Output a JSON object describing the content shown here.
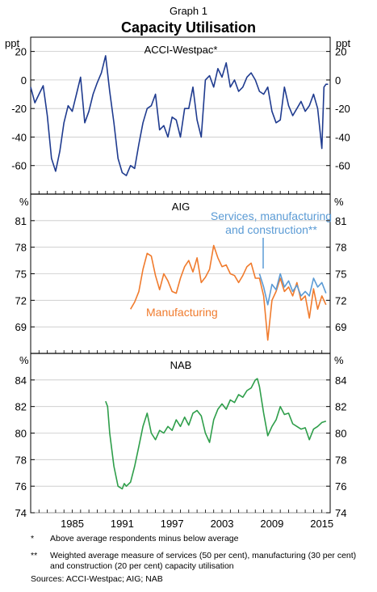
{
  "header": {
    "graph_label": "Graph 1",
    "title": "Capacity Utilisation"
  },
  "colors": {
    "acci": "#1f3b8f",
    "manufacturing": "#f07b2d",
    "services": "#5b9bd5",
    "nab": "#2e9e4a"
  },
  "chart_data": [
    {
      "type": "line",
      "title": "ACCI-Westpac*",
      "ylabel": "ppt",
      "ylim": [
        -80,
        30
      ],
      "yticks": [
        -60,
        -40,
        -20,
        0,
        20
      ],
      "xlim": [
        1980,
        2016
      ],
      "series": [
        {
          "name": "ACCI-Westpac",
          "x": [
            1980,
            1980.5,
            1981,
            1981.5,
            1982,
            1982.5,
            1983,
            1983.5,
            1984,
            1984.5,
            1985,
            1985.5,
            1986,
            1986.5,
            1987,
            1987.5,
            1988,
            1988.5,
            1989,
            1989.5,
            1990,
            1990.5,
            1991,
            1991.5,
            1992,
            1992.5,
            1993,
            1993.5,
            1994,
            1994.5,
            1995,
            1995.5,
            1996,
            1996.5,
            1997,
            1997.5,
            1998,
            1998.5,
            1999,
            1999.5,
            2000,
            2000.5,
            2001,
            2001.5,
            2002,
            2002.5,
            2003,
            2003.5,
            2004,
            2004.5,
            2005,
            2005.5,
            2006,
            2006.5,
            2007,
            2007.5,
            2008,
            2008.5,
            2009,
            2009.5,
            2010,
            2010.5,
            2011,
            2011.5,
            2012,
            2012.5,
            2013,
            2013.5,
            2014,
            2014.5,
            2015,
            2015.25,
            2015.5,
            2015.75
          ],
          "values": [
            -5,
            -16,
            -10,
            -4,
            -25,
            -55,
            -64,
            -50,
            -30,
            -18,
            -22,
            -10,
            2,
            -30,
            -22,
            -10,
            -2,
            5,
            17,
            -8,
            -30,
            -55,
            -65,
            -67,
            -60,
            -62,
            -45,
            -30,
            -20,
            -18,
            -10,
            -35,
            -32,
            -40,
            -26,
            -28,
            -40,
            -20,
            -20,
            -5,
            -28,
            -40,
            0,
            3,
            -5,
            8,
            2,
            12,
            -5,
            0,
            -8,
            -5,
            2,
            5,
            0,
            -8,
            -10,
            -5,
            -22,
            -30,
            -28,
            -5,
            -18,
            -25,
            -20,
            -15,
            -22,
            -18,
            -10,
            -20,
            -48,
            -5,
            -3,
            -3
          ]
        }
      ]
    },
    {
      "type": "line",
      "title": "AIG",
      "ylabel": "%",
      "ylim": [
        66,
        84
      ],
      "yticks": [
        69,
        72,
        75,
        78,
        81
      ],
      "xlim": [
        1980,
        2016
      ],
      "series": [
        {
          "name": "Manufacturing",
          "x": [
            1992,
            1992.5,
            1993,
            1993.5,
            1994,
            1994.5,
            1995,
            1995.5,
            1996,
            1996.5,
            1997,
            1997.5,
            1998,
            1998.5,
            1999,
            1999.5,
            2000,
            2000.5,
            2001,
            2001.5,
            2002,
            2002.5,
            2003,
            2003.5,
            2004,
            2004.5,
            2005,
            2005.5,
            2006,
            2006.5,
            2007,
            2007.5,
            2008,
            2008.5,
            2009,
            2009.5,
            2010,
            2010.5,
            2011,
            2011.5,
            2012,
            2012.5,
            2013,
            2013.5,
            2014,
            2014.5,
            2015,
            2015.5
          ],
          "values": [
            71,
            71.8,
            73,
            75.5,
            77.3,
            77,
            74.8,
            73.2,
            75,
            74.2,
            73,
            72.8,
            74.5,
            75.8,
            76.5,
            75.2,
            76.8,
            74,
            74.6,
            75.5,
            78.2,
            76.8,
            75.8,
            76,
            75,
            74.8,
            74,
            74.8,
            75.8,
            76.2,
            74.5,
            74.5,
            72.5,
            67.5,
            72,
            73,
            74.5,
            73,
            73.5,
            72.5,
            74,
            72,
            72.5,
            70,
            73.3,
            71,
            72.5,
            71.5
          ]
        },
        {
          "name": "Services, manufacturing and construction**",
          "x": [
            2007.5,
            2008,
            2008.5,
            2009,
            2009.5,
            2010,
            2010.5,
            2011,
            2011.5,
            2012,
            2012.5,
            2013,
            2013.5,
            2014,
            2014.5,
            2015,
            2015.5
          ],
          "values": [
            75,
            73.5,
            71.5,
            73.8,
            73.2,
            75,
            73.5,
            74.2,
            73,
            73.7,
            72.5,
            73,
            72.5,
            74.5,
            73.5,
            74,
            72.8
          ]
        }
      ]
    },
    {
      "type": "line",
      "title": "NAB",
      "ylabel": "%",
      "ylim": [
        74,
        86
      ],
      "yticks": [
        74,
        76,
        78,
        80,
        82,
        84
      ],
      "xlim": [
        1980,
        2016
      ],
      "xticks": [
        1985,
        1991,
        1997,
        2003,
        2009,
        2015
      ],
      "series": [
        {
          "name": "NAB",
          "x": [
            1989,
            1989.25,
            1989.5,
            1990,
            1990.5,
            1991,
            1991.25,
            1991.5,
            1992,
            1992.5,
            1993,
            1993.5,
            1994,
            1994.5,
            1995,
            1995.5,
            1996,
            1996.5,
            1997,
            1997.5,
            1998,
            1998.5,
            1999,
            1999.5,
            2000,
            2000.5,
            2001,
            2001.5,
            2002,
            2002.5,
            2003,
            2003.5,
            2004,
            2004.5,
            2005,
            2005.5,
            2006,
            2006.5,
            2007,
            2007.25,
            2007.5,
            2008,
            2008.5,
            2009,
            2009.5,
            2010,
            2010.5,
            2011,
            2011.5,
            2012,
            2012.5,
            2013,
            2013.5,
            2014,
            2014.5,
            2015,
            2015.5
          ],
          "values": [
            82.4,
            82,
            80,
            77.5,
            76,
            75.8,
            76.2,
            76,
            76.3,
            77.5,
            79,
            80.5,
            81.5,
            80,
            79.5,
            80.2,
            80,
            80.5,
            80.2,
            81,
            80.5,
            81.2,
            80.6,
            81.5,
            81.7,
            81.3,
            80,
            79.3,
            81,
            81.8,
            82.2,
            81.8,
            82.5,
            82.3,
            82.9,
            82.7,
            83.2,
            83.4,
            84,
            84.1,
            83.5,
            81.5,
            79.8,
            80.5,
            81,
            82,
            81.4,
            81.5,
            80.7,
            80.5,
            80.3,
            80.4,
            79.5,
            80.3,
            80.5,
            80.8,
            80.9
          ]
        }
      ]
    }
  ],
  "panel_titles": {
    "acci": "ACCI-Westpac*",
    "aig": "AIG",
    "nab": "NAB"
  },
  "units": {
    "acci_left": "ppt",
    "acci_right": "ppt",
    "aig_left": "%",
    "aig_right": "%",
    "nab_left": "%",
    "nab_right": "%"
  },
  "tick_labels": {
    "acci": [
      "20",
      "0",
      "-20",
      "-40",
      "-60"
    ],
    "aig": [
      "81",
      "78",
      "75",
      "72",
      "69"
    ],
    "nab": [
      "84",
      "82",
      "80",
      "78",
      "76",
      "74"
    ],
    "x": [
      "1985",
      "1991",
      "1997",
      "2003",
      "2009",
      "2015"
    ]
  },
  "series_labels": {
    "manufacturing": "Manufacturing",
    "services_line1": "Services, manufacturing",
    "services_line2": "and construction**"
  },
  "footnotes": [
    {
      "mark": "*",
      "text": "Above average respondents minus below average"
    },
    {
      "mark": "**",
      "text": "Weighted average measure of services (50 per cent), manufacturing (30 per cent) and construction (20 per cent) capacity utilisation"
    }
  ],
  "sources": "Sources:  ACCI-Westpac; AIG; NAB"
}
